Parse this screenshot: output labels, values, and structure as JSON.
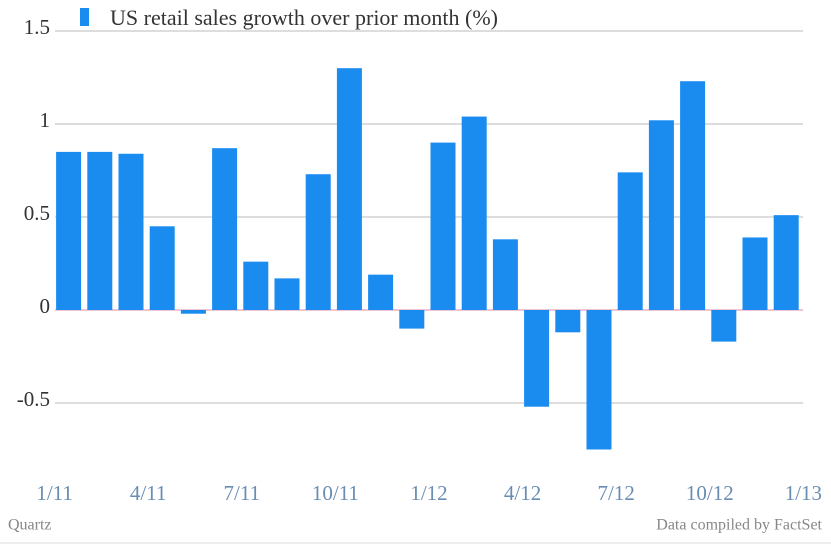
{
  "chart_data": {
    "type": "bar",
    "title": "US retail sales growth over prior month (%)",
    "source": "Data compiled by FactSet",
    "publisher": "Quartz",
    "categories": [
      "1/11",
      null,
      null,
      "4/11",
      null,
      null,
      "7/11",
      null,
      null,
      "10/11",
      null,
      null,
      "1/12",
      null,
      null,
      "4/12",
      null,
      null,
      "7/12",
      null,
      null,
      "10/12",
      null,
      null,
      "1/13"
    ],
    "values": [
      0.85,
      0.85,
      0.84,
      0.45,
      -0.02,
      0.87,
      0.26,
      0.17,
      0.73,
      1.3,
      0.19,
      -0.1,
      0.9,
      1.04,
      0.38,
      -0.52,
      -0.12,
      -0.75,
      0.74,
      1.02,
      1.23,
      -0.17,
      0.39,
      0.51,
      null
    ],
    "color": "#1a8cf0",
    "ylim": [
      -0.8,
      1.5
    ],
    "yticks": [
      -0.5,
      0,
      0.5,
      1,
      1.5
    ],
    "grid": true
  }
}
